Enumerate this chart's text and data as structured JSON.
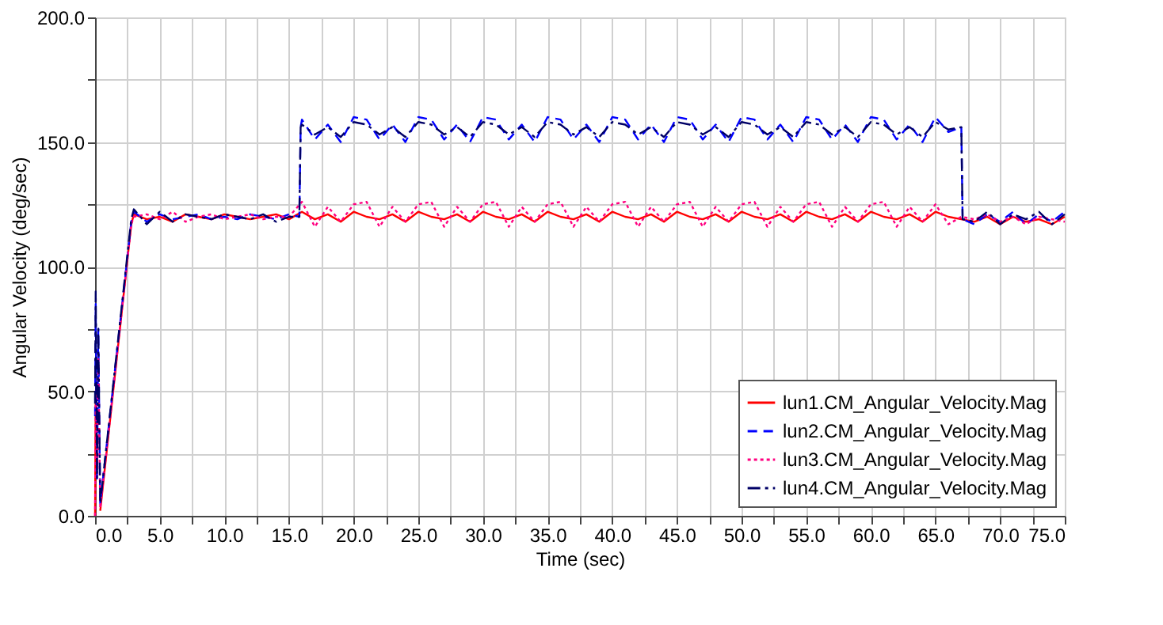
{
  "chart_data": {
    "type": "line",
    "xlabel": "Time (sec)",
    "ylabel": "Angular Velocity (deg/sec)",
    "xlim": [
      0,
      75
    ],
    "ylim": [
      0,
      200
    ],
    "xticks": [
      {
        "value": 0,
        "label": "0.0"
      },
      {
        "value": 2.5,
        "label": null
      },
      {
        "value": 5,
        "label": "5.0"
      },
      {
        "value": 7.5,
        "label": null
      },
      {
        "value": 10,
        "label": "10.0"
      },
      {
        "value": 12.5,
        "label": null
      },
      {
        "value": 15,
        "label": "15.0"
      },
      {
        "value": 17.5,
        "label": null
      },
      {
        "value": 20,
        "label": "20.0"
      },
      {
        "value": 22.5,
        "label": null
      },
      {
        "value": 25,
        "label": "25.0"
      },
      {
        "value": 27.5,
        "label": null
      },
      {
        "value": 30,
        "label": "30.0"
      },
      {
        "value": 32.5,
        "label": null
      },
      {
        "value": 35,
        "label": "35.0"
      },
      {
        "value": 37.5,
        "label": null
      },
      {
        "value": 40,
        "label": "40.0"
      },
      {
        "value": 42.5,
        "label": null
      },
      {
        "value": 45,
        "label": "45.0"
      },
      {
        "value": 47.5,
        "label": null
      },
      {
        "value": 50,
        "label": "50.0"
      },
      {
        "value": 52.5,
        "label": null
      },
      {
        "value": 55,
        "label": "55.0"
      },
      {
        "value": 57.5,
        "label": null
      },
      {
        "value": 60,
        "label": "60.0"
      },
      {
        "value": 62.5,
        "label": null
      },
      {
        "value": 65,
        "label": "65.0"
      },
      {
        "value": 67.5,
        "label": null
      },
      {
        "value": 70,
        "label": "70.0"
      },
      {
        "value": 72.5,
        "label": null
      },
      {
        "value": 75,
        "label": "75.0"
      }
    ],
    "yticks": [
      {
        "value": 0,
        "label": "0.0"
      },
      {
        "value": 25,
        "label": null
      },
      {
        "value": 50,
        "label": "50.0"
      },
      {
        "value": 75,
        "label": null
      },
      {
        "value": 100,
        "label": "100.0"
      },
      {
        "value": 125,
        "label": null
      },
      {
        "value": 150,
        "label": "150.0"
      },
      {
        "value": 175,
        "label": null
      },
      {
        "value": 200,
        "label": "200.0"
      }
    ],
    "grid": true,
    "legend": "bottom right",
    "marker": "none",
    "series": [
      {
        "name": "lun1.CM_Angular_Velocity.Mag",
        "color": "#ff0000",
        "line_style": "solid",
        "x": [
          0,
          0.05,
          0.15,
          0.25,
          0.4,
          2.8,
          3,
          4,
          5,
          6,
          7,
          8,
          9,
          10,
          11,
          12,
          13,
          14,
          15,
          16,
          17,
          18,
          19,
          20,
          21,
          22,
          23,
          24,
          25,
          26,
          27,
          28,
          29,
          30,
          31,
          32,
          33,
          34,
          35,
          36,
          37,
          38,
          39,
          40,
          41,
          42,
          43,
          44,
          45,
          46,
          47,
          48,
          49,
          50,
          51,
          52,
          53,
          54,
          55,
          56,
          57,
          58,
          59,
          60,
          61,
          62,
          63,
          64,
          65,
          66,
          67,
          68,
          69,
          70,
          71,
          72,
          73,
          74,
          75
        ],
        "values": [
          0,
          50,
          20,
          null,
          2,
          117,
          121,
          119,
          120,
          118,
          121,
          120,
          119,
          121,
          120,
          119,
          120,
          121,
          119,
          122,
          119,
          121,
          118,
          122,
          120,
          119,
          121,
          118,
          122,
          120,
          119,
          121,
          118,
          122,
          120,
          119,
          121,
          118,
          122,
          120,
          119,
          121,
          118,
          122,
          120,
          119,
          121,
          118,
          122,
          120,
          119,
          121,
          118,
          122,
          120,
          119,
          121,
          118,
          122,
          120,
          119,
          121,
          118,
          122,
          120,
          119,
          121,
          118,
          122,
          120,
          119,
          118,
          120,
          117,
          120,
          118,
          119,
          117,
          120
        ]
      },
      {
        "name": "lun2.CM_Angular_Velocity.Mag",
        "color": "#0000ff",
        "line_style": "dashed",
        "x": [
          0,
          0.05,
          0.15,
          0.25,
          0.4,
          2.8,
          3,
          4,
          5,
          6,
          7,
          8,
          9,
          10,
          11,
          12,
          13,
          14,
          15,
          15.8,
          15.9,
          16,
          17,
          18,
          19,
          20,
          21,
          22,
          23,
          24,
          25,
          26,
          27,
          28,
          29,
          30,
          31,
          32,
          33,
          34,
          35,
          36,
          37,
          38,
          39,
          40,
          41,
          42,
          43,
          44,
          45,
          46,
          47,
          48,
          49,
          50,
          51,
          52,
          53,
          54,
          55,
          56,
          57,
          58,
          59,
          60,
          61,
          62,
          63,
          64,
          65,
          66,
          67,
          67.1,
          68,
          69,
          70,
          71,
          72,
          73,
          74,
          75
        ],
        "values": [
          40,
          85,
          15,
          75,
          5,
          118,
          122,
          118,
          121,
          119,
          120,
          121,
          119,
          120,
          119,
          121,
          120,
          119,
          121,
          120,
          156,
          159,
          151,
          157,
          150,
          160,
          159,
          151,
          157,
          150,
          160,
          159,
          151,
          157,
          150,
          160,
          159,
          151,
          157,
          150,
          160,
          159,
          151,
          157,
          150,
          160,
          159,
          151,
          157,
          150,
          160,
          159,
          151,
          157,
          150,
          160,
          159,
          151,
          157,
          150,
          160,
          159,
          151,
          157,
          150,
          160,
          159,
          151,
          157,
          150,
          160,
          154,
          156,
          119,
          117,
          121,
          118,
          122,
          117,
          121,
          118,
          122
        ]
      },
      {
        "name": "lun3.CM_Angular_Velocity.Mag",
        "color": "#ff0080",
        "line_style": "dotted",
        "x": [
          0,
          0.05,
          0.15,
          0.25,
          0.4,
          2.8,
          3,
          4,
          5,
          6,
          7,
          8,
          9,
          10,
          11,
          12,
          13,
          14,
          15,
          16,
          17,
          18,
          19,
          20,
          21,
          22,
          23,
          24,
          25,
          26,
          27,
          28,
          29,
          30,
          31,
          32,
          33,
          34,
          35,
          36,
          37,
          38,
          39,
          40,
          41,
          42,
          43,
          44,
          45,
          46,
          47,
          48,
          49,
          50,
          51,
          52,
          53,
          54,
          55,
          56,
          57,
          58,
          59,
          60,
          61,
          62,
          63,
          64,
          65,
          66,
          67,
          68,
          69,
          70,
          71,
          72,
          73,
          74,
          75
        ],
        "values": [
          0,
          45,
          20,
          65,
          3,
          117,
          120,
          121,
          119,
          122,
          118,
          120,
          121,
          119,
          120,
          121,
          119,
          120,
          120,
          126,
          116,
          124,
          118,
          125,
          126,
          116,
          124,
          118,
          125,
          126,
          116,
          124,
          118,
          125,
          126,
          116,
          124,
          118,
          125,
          126,
          116,
          124,
          118,
          125,
          126,
          116,
          124,
          118,
          125,
          126,
          116,
          124,
          118,
          125,
          126,
          116,
          124,
          118,
          125,
          126,
          116,
          124,
          118,
          125,
          126,
          116,
          124,
          118,
          125,
          117,
          120,
          119,
          121,
          118,
          120,
          117,
          120,
          119,
          118
        ]
      },
      {
        "name": "lun4.CM_Angular_Velocity.Mag",
        "color": "#000066",
        "line_style": "dashdot",
        "x": [
          0,
          0.05,
          0.15,
          0.25,
          0.4,
          2.8,
          3,
          4,
          5,
          6,
          7,
          8,
          9,
          10,
          11,
          12,
          13,
          14,
          15,
          15.8,
          15.9,
          16,
          17,
          18,
          19,
          20,
          21,
          22,
          23,
          24,
          25,
          26,
          27,
          28,
          29,
          30,
          31,
          32,
          33,
          34,
          35,
          36,
          37,
          38,
          39,
          40,
          41,
          42,
          43,
          44,
          45,
          46,
          47,
          48,
          49,
          50,
          51,
          52,
          53,
          54,
          55,
          56,
          57,
          58,
          59,
          60,
          61,
          62,
          63,
          64,
          65,
          66,
          67,
          67.1,
          68,
          69,
          70,
          71,
          72,
          73,
          74,
          75
        ],
        "values": [
          45,
          90,
          15,
          75,
          5,
          119,
          123,
          117,
          122,
          118,
          121,
          120,
          119,
          121,
          120,
          119,
          121,
          118,
          120,
          120,
          156,
          157,
          153,
          156,
          152,
          158,
          157,
          153,
          156,
          152,
          158,
          157,
          153,
          156,
          152,
          158,
          157,
          153,
          156,
          152,
          158,
          157,
          153,
          156,
          152,
          158,
          157,
          153,
          156,
          152,
          158,
          157,
          153,
          156,
          152,
          158,
          157,
          153,
          156,
          152,
          158,
          157,
          153,
          156,
          152,
          158,
          157,
          153,
          156,
          152,
          158,
          155,
          156,
          119,
          118,
          122,
          117,
          121,
          119,
          122,
          117,
          121
        ]
      }
    ]
  }
}
